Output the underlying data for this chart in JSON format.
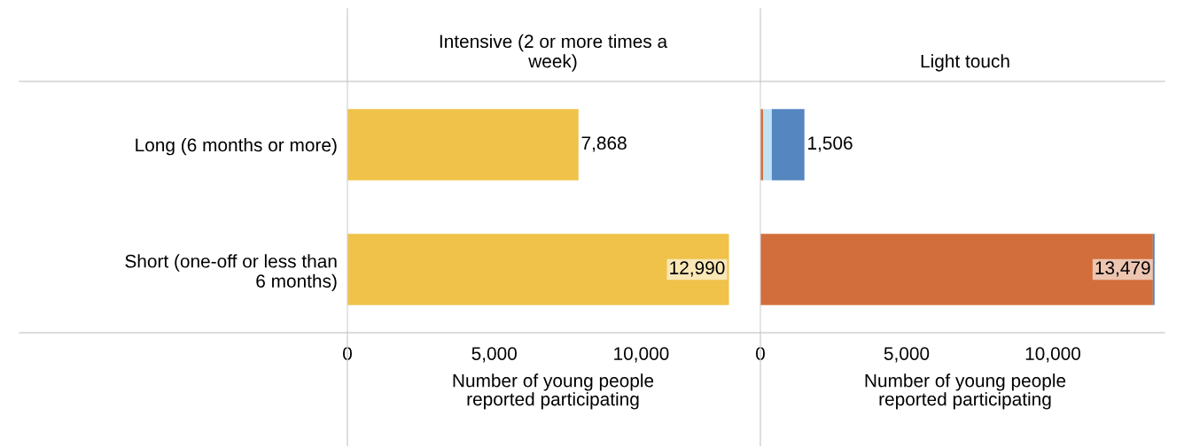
{
  "chart_data": [
    {
      "type": "bar",
      "orientation": "horizontal",
      "title": "Intensive (2 or more times a week)",
      "xlabel": "Number of young people reported participating",
      "categories": [
        "Long (6 months or more)",
        "Short (one-off or less than 6 months)"
      ],
      "xlim": [
        0,
        14000
      ],
      "xticks": [
        {
          "value": 0,
          "label": "0"
        },
        {
          "value": 5000,
          "label": "5,000"
        },
        {
          "value": 10000,
          "label": "10,000"
        }
      ],
      "data_labels": true,
      "series": [
        {
          "color": "#f0c24a",
          "values": [
            7868,
            12990
          ],
          "value_labels": [
            "7,868",
            "12,990"
          ]
        }
      ]
    },
    {
      "type": "bar",
      "orientation": "horizontal",
      "stacked": true,
      "title": "Light touch",
      "xlabel": "Number of young people reported participating",
      "categories": [
        null,
        null
      ],
      "tick_labels": "x",
      "xlim": [
        0,
        14000
      ],
      "xticks": [
        {
          "value": 0,
          "label": "0"
        },
        {
          "value": 5000,
          "label": "5,000"
        },
        {
          "value": 10000,
          "label": "10,000"
        }
      ],
      "totals": [
        "1,506",
        "13,479"
      ],
      "series": [
        {
          "color": "#d26e3b",
          "values": [
            90,
            13420
          ]
        },
        {
          "color": "#bfe3f5",
          "values": [
            300,
            0
          ]
        },
        {
          "color": "#5586c0",
          "values": [
            1116,
            59
          ]
        }
      ]
    }
  ]
}
